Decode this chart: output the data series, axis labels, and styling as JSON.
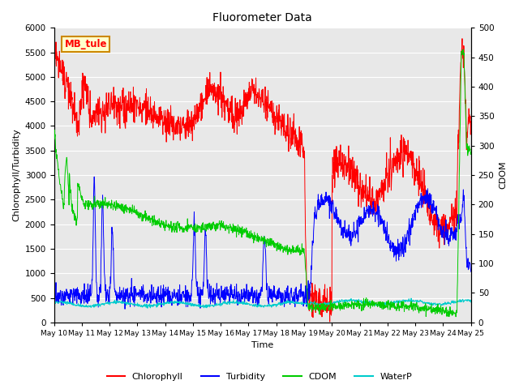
{
  "title": "Fluorometer Data",
  "xlabel": "Time",
  "ylabel_left": "Chlorophyll/Turbidity",
  "ylabel_right": "CDOM",
  "annotation_text": "MB_tule",
  "annotation_bg": "#ffffcc",
  "annotation_border": "#cc8800",
  "left_ylim": [
    0,
    6000
  ],
  "right_ylim": [
    0,
    500
  ],
  "left_yticks": [
    0,
    500,
    1000,
    1500,
    2000,
    2500,
    3000,
    3500,
    4000,
    4500,
    5000,
    5500,
    6000
  ],
  "right_yticks": [
    0,
    50,
    100,
    150,
    200,
    250,
    300,
    350,
    400,
    450,
    500
  ],
  "x_tick_labels": [
    "May 10",
    "May 11",
    "May 12",
    "May 13",
    "May 14",
    "May 15",
    "May 16",
    "May 17",
    "May 18",
    "May 19",
    "May 20",
    "May 21",
    "May 22",
    "May 23",
    "May 24",
    "May 25"
  ],
  "bg_color": "#e8e8e8",
  "grid_color": "white",
  "legend_items": [
    "Chlorophyll",
    "Turbidity",
    "CDOM",
    "WaterP"
  ],
  "legend_colors": [
    "#ff0000",
    "#0000ff",
    "#00cc00",
    "#00cccc"
  ],
  "chlorophyll_color": "#ff0000",
  "turbidity_color": "#0000ff",
  "cdom_color": "#00cc00",
  "waterp_color": "#00cccc",
  "figsize": [
    6.4,
    4.8
  ],
  "dpi": 100
}
